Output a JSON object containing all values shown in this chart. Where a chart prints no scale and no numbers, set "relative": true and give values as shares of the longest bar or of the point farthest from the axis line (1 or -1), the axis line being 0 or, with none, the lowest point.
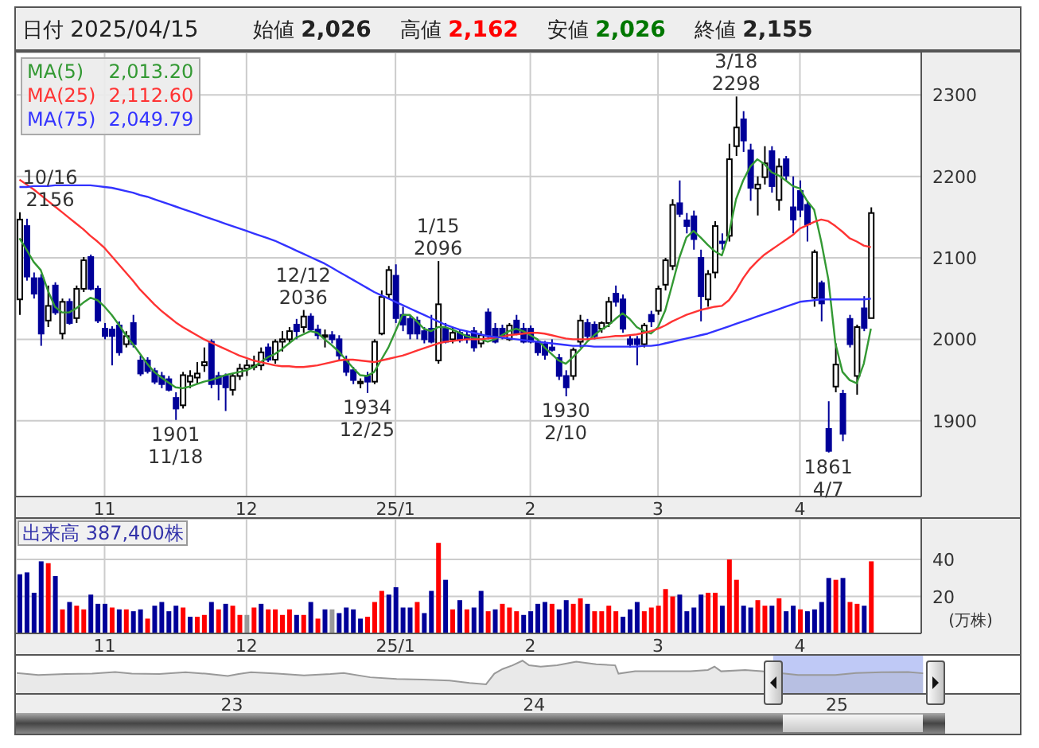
{
  "chart_data": [
    {
      "type": "candlestick",
      "annotations": [
        "日付 2025/04/15",
        "始値 2,026",
        "高値 2,162",
        "安値 2,026",
        "終値 2,155",
        {
          "text": "10/16 2156",
          "y": 2156
        },
        {
          "text": "12/12 2036",
          "y": 2036
        },
        {
          "text": "1/15 2096",
          "y": 2096
        },
        {
          "text": "3/18 2298",
          "y": 2298
        },
        {
          "text": "1901 11/18",
          "y": 1901
        },
        {
          "text": "1934 12/25",
          "y": 1934
        },
        {
          "text": "1930 2/10",
          "y": 1930
        },
        {
          "text": "1861 4/7",
          "y": 1861
        }
      ],
      "categories": [
        null,
        null,
        null,
        null,
        null,
        null,
        null,
        null,
        null,
        null,
        null,
        null,
        "11",
        null,
        null,
        null,
        null,
        null,
        null,
        null,
        null,
        null,
        null,
        null,
        null,
        null,
        null,
        null,
        null,
        null,
        null,
        null,
        "12",
        null,
        null,
        null,
        null,
        null,
        null,
        null,
        null,
        null,
        null,
        null,
        null,
        null,
        null,
        null,
        null,
        null,
        null,
        null,
        null,
        "25/1",
        null,
        null,
        null,
        null,
        null,
        null,
        null,
        null,
        null,
        null,
        null,
        null,
        null,
        null,
        null,
        null,
        null,
        null,
        "2",
        null,
        null,
        null,
        null,
        null,
        null,
        null,
        null,
        null,
        null,
        null,
        null,
        null,
        null,
        null,
        null,
        null,
        "3",
        null,
        null,
        null,
        null,
        null,
        null,
        null,
        null,
        null,
        null,
        null,
        null,
        null,
        null,
        null,
        null,
        null,
        null,
        null,
        "4",
        null,
        null,
        null,
        null,
        null,
        null,
        null,
        null,
        null,
        null
      ],
      "ohlc": [
        [
          2049,
          2156,
          2030,
          2147
        ],
        [
          2139,
          2148,
          2072,
          2077
        ],
        [
          2075,
          2082,
          2050,
          2056
        ],
        [
          2075,
          2080,
          1992,
          2007
        ],
        [
          2023,
          2066,
          2015,
          2041
        ],
        [
          2066,
          2070,
          2030,
          2033
        ],
        [
          2007,
          2050,
          2000,
          2046
        ],
        [
          2046,
          2050,
          2018,
          2020
        ],
        [
          2026,
          2066,
          2020,
          2062
        ],
        [
          2062,
          2101,
          2058,
          2097
        ],
        [
          2101,
          2104,
          2060,
          2062
        ],
        [
          2062,
          2066,
          2020,
          2023
        ],
        [
          2013,
          2020,
          2000,
          2004
        ],
        [
          2012,
          2016,
          1968,
          2004
        ],
        [
          2017,
          2022,
          1980,
          1984
        ],
        [
          1994,
          2010,
          1990,
          2004
        ],
        [
          2020,
          2030,
          1990,
          1994
        ],
        [
          1974,
          1980,
          1955,
          1958
        ],
        [
          1974,
          1978,
          1958,
          1961
        ],
        [
          1961,
          1965,
          1945,
          1948
        ],
        [
          1955,
          1960,
          1940,
          1945
        ],
        [
          1951,
          1955,
          1936,
          1938
        ],
        [
          1928,
          1935,
          1901,
          1915
        ],
        [
          1919,
          1960,
          1915,
          1956
        ],
        [
          1948,
          1962,
          1940,
          1955
        ],
        [
          1953,
          1972,
          1945,
          1958
        ],
        [
          1968,
          1990,
          1960,
          1972
        ],
        [
          1997,
          2000,
          1940,
          1945
        ],
        [
          1955,
          1960,
          1925,
          1945
        ],
        [
          1955,
          1958,
          1912,
          1941
        ],
        [
          1938,
          1958,
          1931,
          1955
        ],
        [
          1955,
          1970,
          1950,
          1964
        ],
        [
          1964,
          1975,
          1955,
          1968
        ],
        [
          1968,
          1980,
          1962,
          1968
        ],
        [
          1968,
          1990,
          1962,
          1984
        ],
        [
          1990,
          1995,
          1972,
          1975
        ],
        [
          1975,
          2000,
          1970,
          1997
        ],
        [
          1997,
          2010,
          1985,
          2000
        ],
        [
          2000,
          2015,
          1995,
          2010
        ],
        [
          2018,
          2025,
          2000,
          2010
        ],
        [
          2015,
          2036,
          2008,
          2028
        ],
        [
          2028,
          2032,
          2010,
          2012
        ],
        [
          2012,
          2018,
          2000,
          2005
        ],
        [
          2003,
          2012,
          1990,
          2005
        ],
        [
          2005,
          2010,
          1995,
          2000
        ],
        [
          2000,
          2005,
          1975,
          1980
        ],
        [
          1975,
          1980,
          1955,
          1960
        ],
        [
          1962,
          1966,
          1945,
          1950
        ],
        [
          1946,
          1952,
          1940,
          1948
        ],
        [
          1955,
          1960,
          1934,
          1948
        ],
        [
          1948,
          2000,
          1945,
          1997
        ],
        [
          2007,
          2060,
          2005,
          2052
        ],
        [
          2055,
          2090,
          2050,
          2085
        ],
        [
          2078,
          2092,
          2020,
          2026
        ],
        [
          2030,
          2040,
          2010,
          2018
        ],
        [
          2025,
          2030,
          2000,
          2007
        ],
        [
          2023,
          2028,
          2000,
          2007
        ],
        [
          2010,
          2015,
          1995,
          2000
        ],
        [
          2013,
          2030,
          1995,
          1997
        ],
        [
          1974,
          2096,
          1970,
          2043
        ],
        [
          2013,
          2020,
          1995,
          1997
        ],
        [
          2000,
          2015,
          1995,
          2008
        ],
        [
          2008,
          2012,
          1996,
          1999
        ],
        [
          2005,
          2010,
          1995,
          2000
        ],
        [
          2010,
          2015,
          1985,
          1990
        ],
        [
          1995,
          2010,
          1990,
          2005
        ],
        [
          2033,
          2038,
          2000,
          2004
        ],
        [
          2013,
          2020,
          1995,
          1997
        ],
        [
          2013,
          2018,
          2000,
          2004
        ],
        [
          2000,
          2020,
          1998,
          2017
        ],
        [
          2023,
          2030,
          2005,
          2007
        ],
        [
          2013,
          2020,
          1995,
          1997
        ],
        [
          2013,
          2017,
          1995,
          1997
        ],
        [
          1997,
          2000,
          1980,
          1984
        ],
        [
          1994,
          1998,
          1975,
          1981
        ],
        [
          1990,
          2000,
          1985,
          1987
        ],
        [
          1977,
          1982,
          1950,
          1955
        ],
        [
          1955,
          1962,
          1930,
          1941
        ],
        [
          1955,
          1990,
          1950,
          1987
        ],
        [
          1997,
          2030,
          1990,
          2023
        ],
        [
          2020,
          2025,
          2000,
          2004
        ],
        [
          2018,
          2022,
          2000,
          2004
        ],
        [
          2013,
          2022,
          2008,
          2020
        ],
        [
          2020,
          2052,
          2015,
          2046
        ],
        [
          2056,
          2066,
          2040,
          2046
        ],
        [
          2049,
          2055,
          2008,
          2013
        ],
        [
          2000,
          2005,
          1990,
          1994
        ],
        [
          2000,
          2004,
          1968,
          1994
        ],
        [
          1994,
          2020,
          1990,
          2017
        ],
        [
          2030,
          2035,
          2015,
          2022
        ],
        [
          2035,
          2066,
          2030,
          2062
        ],
        [
          2067,
          2100,
          2060,
          2097
        ],
        [
          2090,
          2172,
          2085,
          2165
        ],
        [
          2167,
          2195,
          2150,
          2154
        ],
        [
          2146,
          2155,
          2130,
          2139
        ],
        [
          2151,
          2158,
          2110,
          2123
        ],
        [
          2100,
          2110,
          2022,
          2053
        ],
        [
          2049,
          2085,
          2040,
          2080
        ],
        [
          2082,
          2145,
          2075,
          2139
        ],
        [
          2120,
          2130,
          2110,
          2118
        ],
        [
          2127,
          2240,
          2120,
          2221
        ],
        [
          2237,
          2298,
          2225,
          2260
        ],
        [
          2270,
          2280,
          2230,
          2244
        ],
        [
          2232,
          2240,
          2170,
          2186
        ],
        [
          2185,
          2200,
          2152,
          2190
        ],
        [
          2199,
          2237,
          2190,
          2216
        ],
        [
          2231,
          2237,
          2180,
          2188
        ],
        [
          2171,
          2222,
          2158,
          2212
        ],
        [
          2221,
          2225,
          2195,
          2201
        ],
        [
          2162,
          2200,
          2130,
          2147
        ],
        [
          2182,
          2195,
          2150,
          2159
        ],
        [
          2165,
          2170,
          2120,
          2141
        ],
        [
          2051,
          2110,
          2040,
          2107
        ],
        [
          2069,
          2072,
          2022,
          2044
        ],
        [
          1890,
          1924,
          1861,
          1863
        ],
        [
          1942,
          1995,
          1935,
          1969
        ],
        [
          1933,
          1938,
          1875,
          1884
        ],
        [
          2025,
          2030,
          1990,
          1994
        ],
        [
          1955,
          2018,
          1932,
          2015
        ],
        [
          2038,
          2053,
          2010,
          2014
        ],
        [
          2026,
          2162,
          2026,
          2155
        ]
      ],
      "colors": [
        "#ffffff",
        "#000099",
        "#000099",
        "#000099",
        "#ffffff",
        "#000099",
        "#ffffff",
        "#000099",
        "#ffffff",
        "#ffffff",
        "#000099",
        "#000099",
        "#000099",
        "#000099",
        "#000099",
        "#ffffff",
        "#000099",
        "#000099",
        "#000099",
        "#000099",
        "#000099",
        "#000099",
        "#000099",
        "#ffffff",
        "#ffffff",
        "#ffffff",
        "#ffffff",
        "#000099",
        "#000099",
        "#000099",
        "#ffffff",
        "#ffffff",
        "#ffffff",
        "#ffffff",
        "#ffffff",
        "#000099",
        "#ffffff",
        "#ffffff",
        "#ffffff",
        "#000099",
        "#ffffff",
        "#000099",
        "#000099",
        "#ffffff",
        "#000099",
        "#000099",
        "#000099",
        "#000099",
        "#ffffff",
        "#000099",
        "#ffffff",
        "#ffffff",
        "#ffffff",
        "#000099",
        "#000099",
        "#000099",
        "#000099",
        "#000099",
        "#000099",
        "#ffffff",
        "#000099",
        "#ffffff",
        "#000099",
        "#000099",
        "#000099",
        "#ffffff",
        "#000099",
        "#000099",
        "#000099",
        "#ffffff",
        "#000099",
        "#000099",
        "#000099",
        "#000099",
        "#000099",
        "#000099",
        "#000099",
        "#000099",
        "#ffffff",
        "#ffffff",
        "#000099",
        "#000099",
        "#ffffff",
        "#ffffff",
        "#000099",
        "#000099",
        "#000099",
        "#000099",
        "#ffffff",
        "#000099",
        "#ffffff",
        "#ffffff",
        "#ffffff",
        "#000099",
        "#000099",
        "#000099",
        "#000099",
        "#ffffff",
        "#ffffff",
        "#000099",
        "#ffffff",
        "#ffffff",
        "#000099",
        "#000099",
        "#ffffff",
        "#ffffff",
        "#000099",
        "#ffffff",
        "#000099",
        "#000099",
        "#000099",
        "#000099",
        "#ffffff",
        "#000099",
        "#000099",
        "#ffffff",
        "#000099",
        "#000099",
        "#ffffff",
        "#000099",
        "#ffffff"
      ],
      "series": [
        {
          "type": "line",
          "name": "MA(5) 2,013.20",
          "color": "#339933",
          "values": [
            2124,
            2110,
            2095,
            2085,
            2060,
            2040,
            2033,
            2033,
            2038,
            2045,
            2051,
            2048,
            2040,
            2030,
            2018,
            2005,
            1994,
            1982,
            1970,
            1960,
            1953,
            1947,
            1941,
            1940,
            1942,
            1945,
            1948,
            1950,
            1953,
            1956,
            1958,
            1960,
            1962,
            1966,
            1972,
            1978,
            1982,
            1988,
            1995,
            2002,
            2006,
            2010,
            2008,
            2000,
            1993,
            1985,
            1975,
            1965,
            1956,
            1955,
            1960,
            1975,
            1990,
            2010,
            2030,
            2030,
            2022,
            2013,
            2010,
            2015,
            2015,
            2012,
            2008,
            2004,
            2002,
            2000,
            1997,
            2000,
            2005,
            2010,
            2013,
            2010,
            2005,
            2000,
            1990,
            1982,
            1974,
            1970,
            1978,
            1987,
            1997,
            2005,
            2012,
            2017,
            2025,
            2032,
            2025,
            2015,
            2010,
            2007,
            2015,
            2035,
            2067,
            2100,
            2125,
            2133,
            2125,
            2116,
            2108,
            2103,
            2130,
            2172,
            2195,
            2212,
            2221,
            2215,
            2205,
            2201,
            2195,
            2188,
            2185,
            2170,
            2159,
            2120,
            2074,
            1995,
            1960,
            1950,
            1946,
            1970,
            2013
          ]
        },
        {
          "type": "line",
          "name": "MA(25) 2,112.60",
          "color": "#ff3333",
          "values": [
            2196,
            2190,
            2184,
            2177,
            2170,
            2163,
            2156,
            2149,
            2142,
            2135,
            2127,
            2120,
            2112,
            2102,
            2092,
            2082,
            2072,
            2061,
            2052,
            2043,
            2035,
            2028,
            2021,
            2015,
            2010,
            2005,
            2000,
            1996,
            1992,
            1988,
            1984,
            1980,
            1977,
            1974,
            1972,
            1970,
            1968,
            1967,
            1967,
            1966,
            1966,
            1967,
            1968,
            1970,
            1972,
            1974,
            1975,
            1975,
            1974,
            1973,
            1972,
            1974,
            1976,
            1978,
            1980,
            1983,
            1986,
            1989,
            1992,
            1995,
            1997,
            1998,
            1999,
            2000,
            2000,
            2000,
            2001,
            2002,
            2003,
            2005,
            2006,
            2007,
            2008,
            2008,
            2007,
            2005,
            2003,
            2001,
            2000,
            2000,
            2000,
            2001,
            2002,
            2003,
            2004,
            2004,
            2005,
            2006,
            2008,
            2010,
            2013,
            2017,
            2022,
            2026,
            2030,
            2033,
            2036,
            2038,
            2040,
            2041,
            2048,
            2060,
            2075,
            2087,
            2096,
            2104,
            2110,
            2116,
            2122,
            2128,
            2136,
            2140,
            2144,
            2147,
            2145,
            2139,
            2132,
            2124,
            2120,
            2115,
            2113
          ]
        },
        {
          "type": "line",
          "name": "MA(75) 2,049.79",
          "color": "#3333ff",
          "values": [
            2187,
            2187,
            2188,
            2188,
            2188,
            2189,
            2189,
            2189,
            2189,
            2189,
            2189,
            2188,
            2187,
            2186,
            2184,
            2182,
            2180,
            2177,
            2175,
            2172,
            2169,
            2166,
            2163,
            2160,
            2157,
            2154,
            2151,
            2148,
            2145,
            2142,
            2139,
            2136,
            2133,
            2130,
            2127,
            2124,
            2121,
            2117,
            2113,
            2109,
            2105,
            2101,
            2097,
            2093,
            2088,
            2083,
            2078,
            2073,
            2068,
            2063,
            2058,
            2054,
            2050,
            2046,
            2042,
            2038,
            2034,
            2030,
            2026,
            2022,
            2018,
            2015,
            2012,
            2010,
            2008,
            2006,
            2004,
            2003,
            2002,
            2001,
            2000,
            1999,
            1998,
            1997,
            1996,
            1995,
            1994,
            1993,
            1992,
            1992,
            1992,
            1991,
            1991,
            1991,
            1991,
            1991,
            1991,
            1991,
            1992,
            1992,
            1993,
            1995,
            1997,
            1999,
            2001,
            2003,
            2005,
            2007,
            2010,
            2013,
            2016,
            2019,
            2022,
            2025,
            2028,
            2031,
            2034,
            2037,
            2040,
            2043,
            2046,
            2047,
            2048,
            2049,
            2049,
            2049,
            2049,
            2049,
            2049,
            2049,
            2050
          ]
        }
      ],
      "ylim": [
        1807,
        2352
      ],
      "yticks": [
        1900,
        2000,
        2100,
        2200,
        2300
      ],
      "grid": true,
      "legend": "top left"
    },
    {
      "type": "bar",
      "title": "出来高 387,400株",
      "ylabel": "(万株)",
      "categories": [
        null,
        null,
        null,
        null,
        null,
        null,
        null,
        null,
        null,
        null,
        null,
        null,
        "11",
        null,
        null,
        null,
        null,
        null,
        null,
        null,
        null,
        null,
        null,
        null,
        null,
        null,
        null,
        null,
        null,
        null,
        null,
        null,
        "12",
        null,
        null,
        null,
        null,
        null,
        null,
        null,
        null,
        null,
        null,
        null,
        null,
        null,
        null,
        null,
        null,
        null,
        null,
        null,
        null,
        "25/1",
        null,
        null,
        null,
        null,
        null,
        null,
        null,
        null,
        null,
        null,
        null,
        null,
        null,
        null,
        null,
        null,
        null,
        null,
        "2",
        null,
        null,
        null,
        null,
        null,
        null,
        null,
        null,
        null,
        null,
        null,
        null,
        null,
        null,
        null,
        null,
        null,
        "3",
        null,
        null,
        null,
        null,
        null,
        null,
        null,
        null,
        null,
        null,
        null,
        null,
        null,
        null,
        null,
        null,
        null,
        null,
        null,
        "4",
        null,
        null,
        null,
        null,
        null,
        null,
        null,
        null,
        null,
        null
      ],
      "values": [
        32,
        33,
        22,
        39,
        38,
        31,
        13,
        17,
        15,
        13,
        21,
        16,
        16,
        14,
        13,
        13,
        12,
        13,
        8,
        15,
        17,
        12,
        15,
        14,
        9,
        9,
        10,
        17,
        13,
        16,
        15,
        10,
        10,
        14,
        16,
        13,
        13,
        10,
        13,
        10,
        10,
        17,
        8,
        13,
        13,
        11,
        14,
        13,
        8,
        9,
        17,
        23,
        21,
        25,
        14,
        14,
        17,
        11,
        23,
        49,
        29,
        13,
        18,
        13,
        14,
        23,
        12,
        13,
        16,
        14,
        12,
        10,
        12,
        16,
        17,
        16,
        13,
        18,
        16,
        19,
        16,
        12,
        12,
        15,
        12,
        9,
        13,
        17,
        12,
        14,
        15,
        24,
        20,
        21,
        12,
        14,
        21,
        22,
        22,
        15,
        40,
        29,
        15,
        14,
        18,
        15,
        15,
        19,
        12,
        15,
        13,
        12,
        13,
        17,
        30,
        29,
        30,
        17,
        16,
        15,
        39
      ],
      "colors": [
        "#000099",
        "#000099",
        "#000099",
        "#000099",
        "#ff0000",
        "#000099",
        "#ff0000",
        "#000099",
        "#ff0000",
        "#ff0000",
        "#000099",
        "#000099",
        "#000099",
        "#ff0000",
        "#000099",
        "#ff0000",
        "#000099",
        "#000099",
        "#ff0000",
        "#000099",
        "#000099",
        "#000099",
        "#000099",
        "#ff0000",
        "#000099",
        "#ff0000",
        "#ff0000",
        "#000099",
        "#ff0000",
        "#000099",
        "#ff0000",
        "#ff0000",
        "#999999",
        "#ff0000",
        "#000099",
        "#ff0000",
        "#ff0000",
        "#ff0000",
        "#ff0000",
        "#000099",
        "#ff0000",
        "#000099",
        "#ff0000",
        "#000099",
        "#999999",
        "#000099",
        "#000099",
        "#000099",
        "#000099",
        "#ff0000",
        "#ff0000",
        "#ff0000",
        "#000099",
        "#000099",
        "#000099",
        "#000099",
        "#ff0000",
        "#000099",
        "#000099",
        "#ff0000",
        "#000099",
        "#ff0000",
        "#000099",
        "#ff0000",
        "#000099",
        "#000099",
        "#ff0000",
        "#000099",
        "#ff0000",
        "#ff0000",
        "#ff0000",
        "#000099",
        "#000099",
        "#000099",
        "#000099",
        "#ff0000",
        "#000099",
        "#000099",
        "#ff0000",
        "#ff0000",
        "#000099",
        "#ff0000",
        "#ff0000",
        "#ff0000",
        "#ff0000",
        "#000099",
        "#000099",
        "#000099",
        "#ff0000",
        "#ff0000",
        "#ff0000",
        "#ff0000",
        "#ff0000",
        "#000099",
        "#000099",
        "#000099",
        "#000099",
        "#ff0000",
        "#ff0000",
        "#000099",
        "#ff0000",
        "#ff0000",
        "#000099",
        "#000099",
        "#ff0000",
        "#ff0000",
        "#000099",
        "#ff0000",
        "#000099",
        "#000099",
        "#ff0000",
        "#000099",
        "#000099",
        "#000099",
        "#000099",
        "#ff0000",
        "#000099",
        "#ff0000",
        "#ff0000",
        "#000099",
        "#ff0000"
      ],
      "ylim": [
        0,
        62
      ],
      "yticks": [
        20,
        40
      ],
      "grid": true
    },
    {
      "type": "area",
      "relative": true,
      "color": "#999999",
      "tick_labels": "x",
      "x": [
        "2022-04-16",
        "2022-05-12",
        "2022-06-14",
        "2022-07-16",
        "2022-08-13",
        "2022-09-02",
        "2022-10-05",
        "2022-11-06",
        "2022-11-30",
        "2022-12-27",
        "2023-01-09",
        "2023-01-24",
        "2023-02-25",
        "2023-03-29",
        "2023-04-30",
        "2023-05-16",
        "2023-06-17",
        "2023-07-19",
        "2023-08-20",
        "2023-09-21",
        "2023-10-15",
        "2023-11-04",
        "2023-11-14",
        "2023-11-24",
        "2023-12-06",
        "2023-12-18",
        "2023-12-26",
        "2024-01-09",
        "2024-01-29",
        "2024-02-21",
        "2024-03-16",
        "2024-04-08",
        "2024-04-12",
        "2024-05-02",
        "2024-06-03",
        "2024-07-08",
        "2024-07-29",
        "2024-08-06",
        "2024-08-14",
        "2024-09-12",
        "2024-10-02",
        "2024-10-30",
        "2024-11-15",
        "2024-12-09",
        "2024-12-30",
        "2025-01-24",
        "2025-02-24",
        "2025-03-28",
        "2025-04-15"
      ],
      "values": [
        0.63,
        0.57,
        0.6,
        0.61,
        0.66,
        0.61,
        0.6,
        0.65,
        0.61,
        0.54,
        0.6,
        0.65,
        0.61,
        0.56,
        0.6,
        0.63,
        0.5,
        0.45,
        0.43,
        0.4,
        0.33,
        0.29,
        0.61,
        0.75,
        0.86,
        1.0,
        0.86,
        0.82,
        0.86,
        0.97,
        0.89,
        0.86,
        0.61,
        0.68,
        0.68,
        0.68,
        0.72,
        0.82,
        0.68,
        0.72,
        0.68,
        0.61,
        0.57,
        0.57,
        0.57,
        0.63,
        0.65,
        0.66,
        0.62
      ],
      "xlim": [
        "2022-04-15",
        "2025-08-10"
      ],
      "xticks": [
        {
          "value": "2023",
          "label": "23"
        },
        {
          "value": "2024",
          "label": "24"
        },
        {
          "value": "2025",
          "label": "25"
        }
      ],
      "bands": [
        {
          "axis": "x",
          "from": "2024-10-16",
          "to": "2025-04-15",
          "color": "#b4c0f4"
        }
      ]
    }
  ]
}
